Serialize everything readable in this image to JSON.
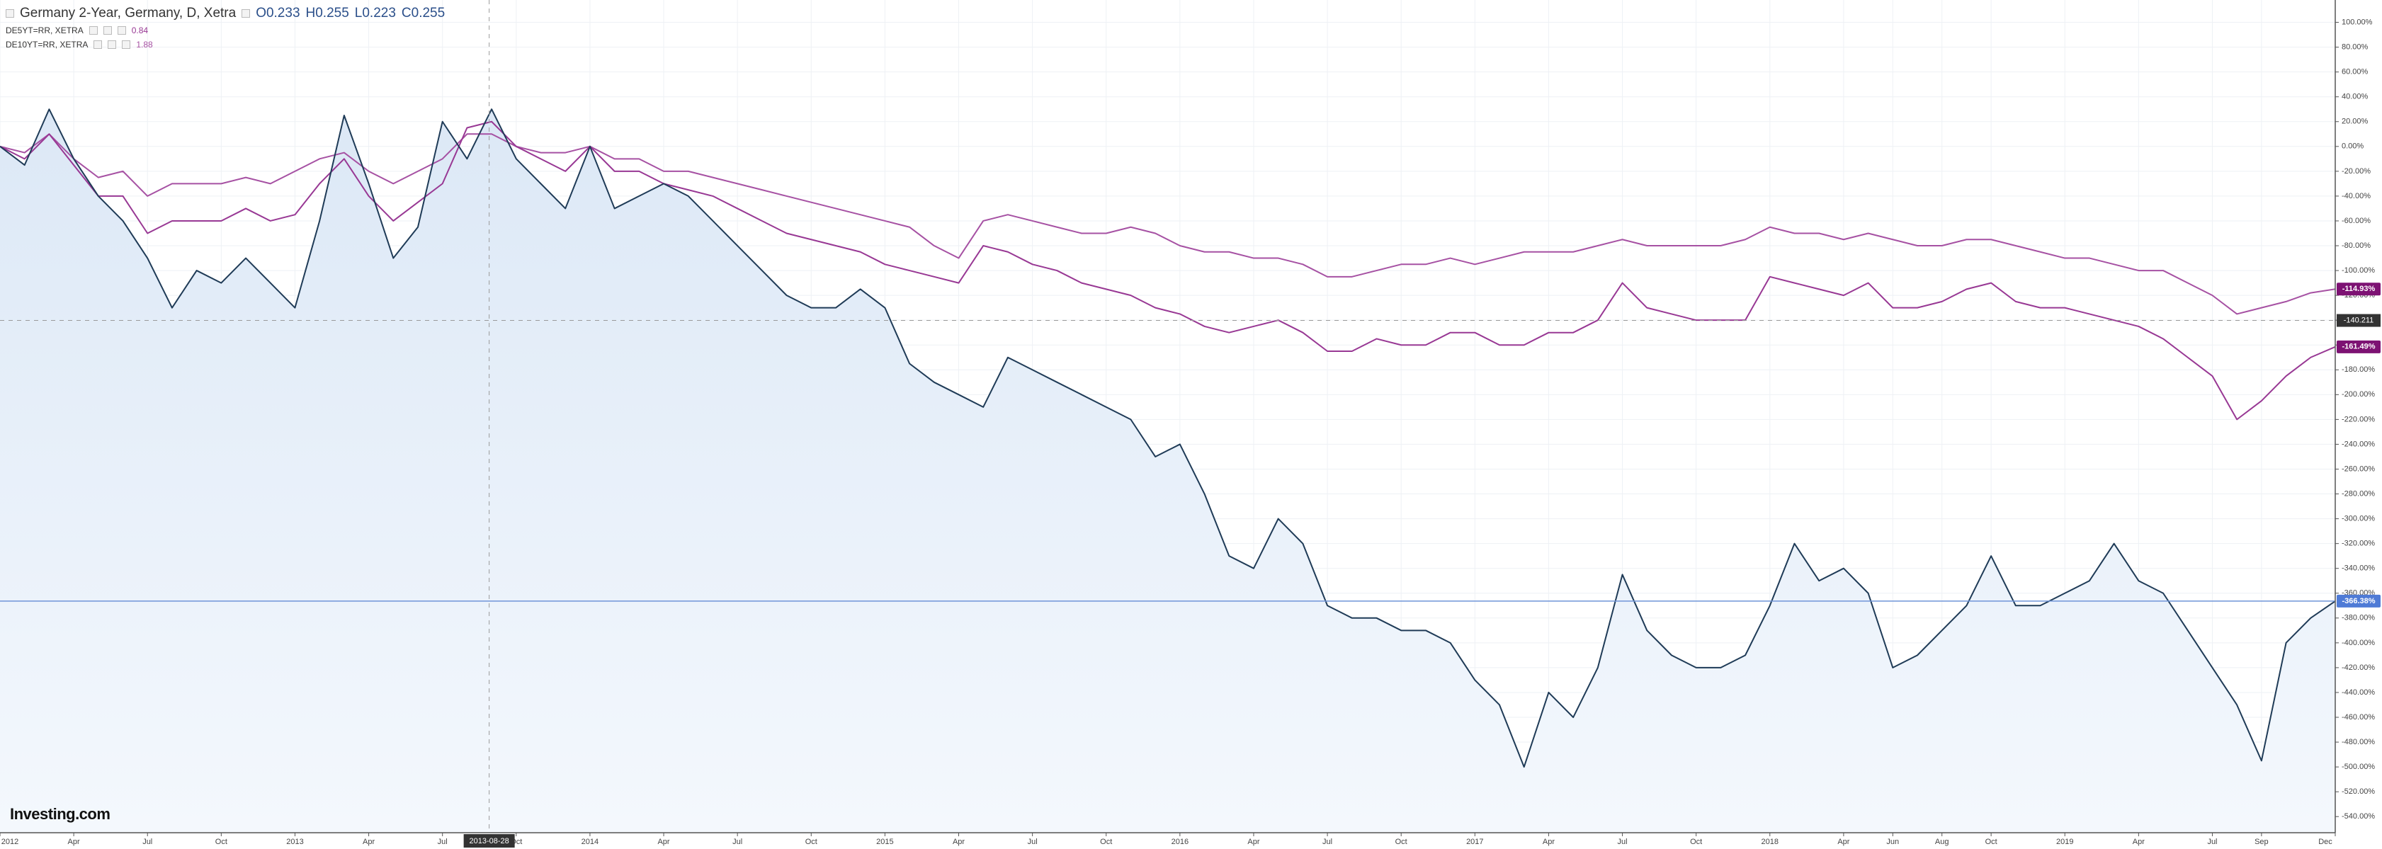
{
  "chart_data": {
    "type": "line",
    "header_ohlc": [
      "O0.233",
      "H0.255",
      "L0.223",
      "C0.255"
    ],
    "watermark": "Investing.com",
    "x": [
      "2012-01",
      "2012-02",
      "2012-03",
      "2012-04",
      "2012-05",
      "2012-06",
      "2012-07",
      "2012-08",
      "2012-09",
      "2012-10",
      "2012-11",
      "2012-12",
      "2013-01",
      "2013-02",
      "2013-03",
      "2013-04",
      "2013-05",
      "2013-06",
      "2013-07",
      "2013-08",
      "2013-09",
      "2013-10",
      "2013-11",
      "2013-12",
      "2014-01",
      "2014-02",
      "2014-03",
      "2014-04",
      "2014-05",
      "2014-06",
      "2014-07",
      "2014-08",
      "2014-09",
      "2014-10",
      "2014-11",
      "2014-12",
      "2015-01",
      "2015-02",
      "2015-03",
      "2015-04",
      "2015-05",
      "2015-06",
      "2015-07",
      "2015-08",
      "2015-09",
      "2015-10",
      "2015-11",
      "2015-12",
      "2016-01",
      "2016-02",
      "2016-03",
      "2016-04",
      "2016-05",
      "2016-06",
      "2016-07",
      "2016-08",
      "2016-09",
      "2016-10",
      "2016-11",
      "2016-12",
      "2017-01",
      "2017-02",
      "2017-03",
      "2017-04",
      "2017-05",
      "2017-06",
      "2017-07",
      "2017-08",
      "2017-09",
      "2017-10",
      "2017-11",
      "2017-12",
      "2018-01",
      "2018-02",
      "2018-03",
      "2018-04",
      "2018-05",
      "2018-06",
      "2018-07",
      "2018-08",
      "2018-09",
      "2018-10",
      "2018-11",
      "2018-12",
      "2019-01",
      "2019-02",
      "2019-03",
      "2019-04",
      "2019-05",
      "2019-06",
      "2019-07",
      "2019-08",
      "2019-09",
      "2019-10",
      "2019-11",
      "2019-12"
    ],
    "xlim": [
      "2012-01",
      "2019-12"
    ],
    "xticks": [
      {
        "value": "2012-01",
        "label": "2012"
      },
      {
        "value": "2012-04",
        "label": "Apr"
      },
      {
        "value": "2012-07",
        "label": "Jul"
      },
      {
        "value": "2012-10",
        "label": "Oct"
      },
      {
        "value": "2013-01",
        "label": "2013"
      },
      {
        "value": "2013-04",
        "label": "Apr"
      },
      {
        "value": "2013-07",
        "label": "Jul"
      },
      {
        "value": "2013-10",
        "label": "Oct"
      },
      {
        "value": "2014-01",
        "label": "2014"
      },
      {
        "value": "2014-04",
        "label": "Apr"
      },
      {
        "value": "2014-07",
        "label": "Jul"
      },
      {
        "value": "2014-10",
        "label": "Oct"
      },
      {
        "value": "2015-01",
        "label": "2015"
      },
      {
        "value": "2015-04",
        "label": "Apr"
      },
      {
        "value": "2015-07",
        "label": "Jul"
      },
      {
        "value": "2015-10",
        "label": "Oct"
      },
      {
        "value": "2016-01",
        "label": "2016"
      },
      {
        "value": "2016-04",
        "label": "Apr"
      },
      {
        "value": "2016-07",
        "label": "Jul"
      },
      {
        "value": "2016-10",
        "label": "Oct"
      },
      {
        "value": "2017-01",
        "label": "2017"
      },
      {
        "value": "2017-04",
        "label": "Apr"
      },
      {
        "value": "2017-07",
        "label": "Jul"
      },
      {
        "value": "2017-10",
        "label": "Oct"
      },
      {
        "value": "2018-01",
        "label": "2018"
      },
      {
        "value": "2018-04",
        "label": "Apr"
      },
      {
        "value": "2018-06",
        "label": "Jun"
      },
      {
        "value": "2018-08",
        "label": "Aug"
      },
      {
        "value": "2018-10",
        "label": "Oct"
      },
      {
        "value": "2019-01",
        "label": "2019"
      },
      {
        "value": "2019-04",
        "label": "Apr"
      },
      {
        "value": "2019-07",
        "label": "Jul"
      },
      {
        "value": "2019-09",
        "label": "Sep"
      },
      {
        "value": "2019-12",
        "label": "Dec"
      }
    ],
    "ylim": [
      -553,
      118
    ],
    "yticks": [
      {
        "value": 100,
        "label": "100.00%"
      },
      {
        "value": 80,
        "label": "80.00%"
      },
      {
        "value": 60,
        "label": "60.00%"
      },
      {
        "value": 40,
        "label": "40.00%"
      },
      {
        "value": 20,
        "label": "20.00%"
      },
      {
        "value": 0,
        "label": "0.00%"
      },
      {
        "value": -20,
        "label": "-20.00%"
      },
      {
        "value": -40,
        "label": "-40.00%"
      },
      {
        "value": -60,
        "label": "-60.00%"
      },
      {
        "value": -80,
        "label": "-80.00%"
      },
      {
        "value": -100,
        "label": "-100.00%"
      },
      {
        "value": -120,
        "label": "-120.00%"
      },
      {
        "value": -140,
        "label": "-140.00%"
      },
      {
        "value": -160,
        "label": "-160.00%"
      },
      {
        "value": -180,
        "label": "-180.00%"
      },
      {
        "value": -200,
        "label": "-200.00%"
      },
      {
        "value": -220,
        "label": "-220.00%"
      },
      {
        "value": -240,
        "label": "-240.00%"
      },
      {
        "value": -260,
        "label": "-260.00%"
      },
      {
        "value": -280,
        "label": "-280.00%"
      },
      {
        "value": -300,
        "label": "-300.00%"
      },
      {
        "value": -320,
        "label": "-320.00%"
      },
      {
        "value": -340,
        "label": "-340.00%"
      },
      {
        "value": -360,
        "label": "-360.00%"
      },
      {
        "value": -380,
        "label": "-380.00%"
      },
      {
        "value": -400,
        "label": "-400.00%"
      },
      {
        "value": -420,
        "label": "-420.00%"
      },
      {
        "value": -440,
        "label": "-440.00%"
      },
      {
        "value": -460,
        "label": "-460.00%"
      },
      {
        "value": -480,
        "label": "-480.00%"
      },
      {
        "value": -500,
        "label": "-500.00%"
      },
      {
        "value": -520,
        "label": "-520.00%"
      },
      {
        "value": -540,
        "label": "-540.00%"
      }
    ],
    "grid": true,
    "crosshair": {
      "x": "2013-08-28",
      "y": -140.211
    },
    "series": [
      {
        "name": "Germany 2-Year, Germany, D, Xetra",
        "color": "#1f3b57",
        "fill": "#dce8f6",
        "last_value_label": "-366.38%",
        "values": [
          0,
          -15,
          30,
          -10,
          -40,
          -60,
          -90,
          -130,
          -100,
          -110,
          -90,
          -110,
          -130,
          -60,
          25,
          -30,
          -90,
          -65,
          20,
          -10,
          30,
          -10,
          -30,
          -50,
          0,
          -50,
          -40,
          -30,
          -40,
          -60,
          -80,
          -100,
          -120,
          -130,
          -130,
          -115,
          -130,
          -175,
          -190,
          -200,
          -210,
          -170,
          -180,
          -190,
          -200,
          -210,
          -220,
          -250,
          -240,
          -280,
          -330,
          -340,
          -300,
          -320,
          -370,
          -380,
          -380,
          -390,
          -390,
          -400,
          -430,
          -450,
          -500,
          -440,
          -460,
          -420,
          -345,
          -390,
          -410,
          -420,
          -420,
          -410,
          -370,
          -320,
          -350,
          -340,
          -360,
          -420,
          -410,
          -390,
          -370,
          -330,
          -370,
          -370,
          -360,
          -350,
          -320,
          -350,
          -360,
          -390,
          -420,
          -450,
          -495,
          -400,
          -380,
          -366.38
        ]
      },
      {
        "name": "DE5YT=RR, XETRA",
        "legend_value": "0.84",
        "color": "#983894",
        "last_value_label": "-161.49%",
        "values": [
          0,
          -10,
          10,
          -15,
          -40,
          -40,
          -70,
          -60,
          -60,
          -60,
          -50,
          -60,
          -55,
          -30,
          -10,
          -40,
          -60,
          -45,
          -30,
          15,
          20,
          0,
          -10,
          -20,
          0,
          -20,
          -20,
          -30,
          -35,
          -40,
          -50,
          -60,
          -70,
          -75,
          -80,
          -85,
          -95,
          -100,
          -105,
          -110,
          -80,
          -85,
          -95,
          -100,
          -110,
          -115,
          -120,
          -130,
          -135,
          -145,
          -150,
          -145,
          -140,
          -150,
          -165,
          -165,
          -155,
          -160,
          -160,
          -150,
          -150,
          -160,
          -160,
          -150,
          -150,
          -140,
          -110,
          -130,
          -135,
          -140,
          -140,
          -140,
          -105,
          -110,
          -115,
          -120,
          -110,
          -130,
          -130,
          -125,
          -115,
          -110,
          -125,
          -130,
          -130,
          -135,
          -140,
          -145,
          -155,
          -170,
          -185,
          -220,
          -205,
          -185,
          -170,
          -161.49
        ]
      },
      {
        "name": "DE10YT=RR, XETRA",
        "legend_value": "1.88",
        "color": "#a651a3",
        "last_value_label": "-114.93%",
        "values": [
          0,
          -5,
          10,
          -10,
          -25,
          -20,
          -40,
          -30,
          -30,
          -30,
          -25,
          -30,
          -20,
          -10,
          -5,
          -20,
          -30,
          -20,
          -10,
          10,
          10,
          0,
          -5,
          -5,
          0,
          -10,
          -10,
          -20,
          -20,
          -25,
          -30,
          -35,
          -40,
          -45,
          -50,
          -55,
          -60,
          -65,
          -80,
          -90,
          -60,
          -55,
          -60,
          -65,
          -70,
          -70,
          -65,
          -70,
          -80,
          -85,
          -85,
          -90,
          -90,
          -95,
          -105,
          -105,
          -100,
          -95,
          -95,
          -90,
          -95,
          -90,
          -85,
          -85,
          -85,
          -80,
          -75,
          -80,
          -80,
          -80,
          -80,
          -75,
          -65,
          -70,
          -70,
          -75,
          -70,
          -75,
          -80,
          -80,
          -75,
          -75,
          -80,
          -85,
          -90,
          -90,
          -95,
          -100,
          -100,
          -110,
          -120,
          -135,
          -130,
          -125,
          -118,
          -114.93
        ]
      }
    ]
  }
}
